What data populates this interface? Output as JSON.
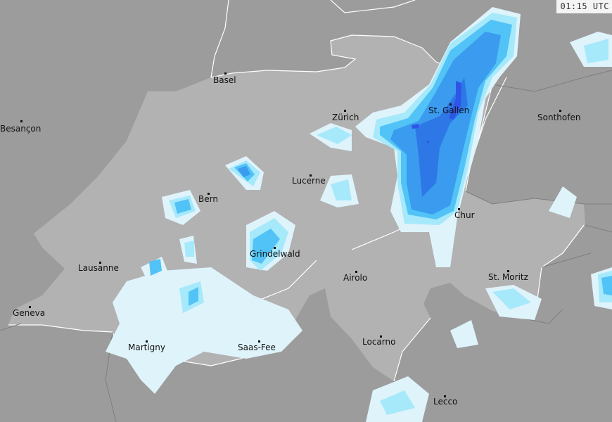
{
  "timestamp": "01:15 UTC",
  "colors": {
    "outside_land": "#9c9c9c",
    "switzerland": "#b2b2b2",
    "border_country": "#ffffff",
    "border_region": "#7e7e7e",
    "precip_level_1": "#dff3fb",
    "precip_level_2": "#a6e9fb",
    "precip_level_3": "#52c3f6",
    "precip_level_4": "#3a9bef",
    "precip_level_5": "#2d78e6",
    "precip_level_6": "#2e55e8"
  },
  "cities": [
    {
      "name": "Basel"
    },
    {
      "name": "Besançon"
    },
    {
      "name": "Zürich"
    },
    {
      "name": "St. Gallen"
    },
    {
      "name": "Sonthofen"
    },
    {
      "name": "Lucerne"
    },
    {
      "name": "Bern"
    },
    {
      "name": "Chur"
    },
    {
      "name": "Grindelwald"
    },
    {
      "name": "Lausanne"
    },
    {
      "name": "Airolo"
    },
    {
      "name": "St. Moritz"
    },
    {
      "name": "Geneva"
    },
    {
      "name": "Martigny"
    },
    {
      "name": "Saas-Fee"
    },
    {
      "name": "Locarno"
    },
    {
      "name": "Lecco"
    }
  ]
}
